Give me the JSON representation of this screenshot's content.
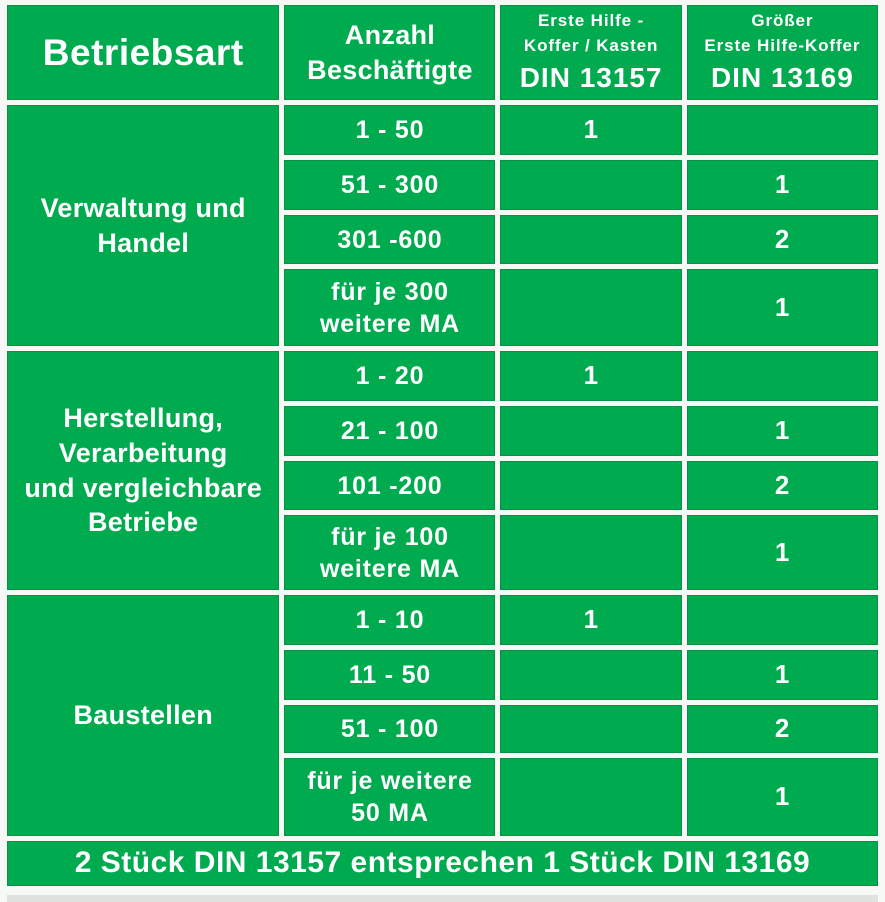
{
  "colors": {
    "green": "#00ab50",
    "cell_border": "#0a9146",
    "page_bg": "#ffffff",
    "text": "#ffffff",
    "bottom_strip": "#dfe3dd"
  },
  "header": {
    "betriebsart": "Betriebsart",
    "anzahl_lines": [
      "Anzahl",
      "Beschäftigte"
    ],
    "din13157_lines": [
      "Erste Hilfe -",
      "Koffer / Kasten"
    ],
    "din13157_code": "DIN 13157",
    "din13169_lines": [
      "Größer",
      "Erste Hilfe-Koffer"
    ],
    "din13169_code": "DIN 13169"
  },
  "groups": [
    {
      "name_lines": [
        "Verwaltung und",
        "Handel",
        "",
        ""
      ],
      "rows": [
        {
          "range_lines": [
            "1 - 50",
            ""
          ],
          "din13157": "1",
          "din13169": ""
        },
        {
          "range_lines": [
            "51 - 300",
            ""
          ],
          "din13157": "",
          "din13169": "1"
        },
        {
          "range_lines": [
            "301 -600",
            ""
          ],
          "din13157": "",
          "din13169": "2"
        },
        {
          "range_lines": [
            "für je 300",
            "weitere MA"
          ],
          "din13157": "",
          "din13169": "1"
        }
      ]
    },
    {
      "name_lines": [
        "Herstellung,",
        "Verarbeitung",
        "und vergleichbare",
        "Betriebe"
      ],
      "rows": [
        {
          "range_lines": [
            "1 - 20",
            ""
          ],
          "din13157": "1",
          "din13169": ""
        },
        {
          "range_lines": [
            "21 - 100",
            ""
          ],
          "din13157": "",
          "din13169": "1"
        },
        {
          "range_lines": [
            "101 -200",
            ""
          ],
          "din13157": "",
          "din13169": "2"
        },
        {
          "range_lines": [
            "für je 100",
            "weitere MA"
          ],
          "din13157": "",
          "din13169": "1"
        }
      ]
    },
    {
      "name_lines": [
        "Baustellen",
        "",
        "",
        ""
      ],
      "rows": [
        {
          "range_lines": [
            "1 - 10",
            ""
          ],
          "din13157": "1",
          "din13169": ""
        },
        {
          "range_lines": [
            "11 - 50",
            ""
          ],
          "din13157": "",
          "din13169": "1"
        },
        {
          "range_lines": [
            "51 - 100",
            ""
          ],
          "din13157": "",
          "din13169": "2"
        },
        {
          "range_lines": [
            "für je weitere",
            "50 MA"
          ],
          "din13157": "",
          "din13169": "1"
        }
      ]
    }
  ],
  "footer": "2 Stück DIN 13157 entsprechen 1 Stück DIN 13169",
  "chart_data": {
    "type": "table",
    "title": "Erste-Hilfe-Koffer Anforderungen nach Betriebsart",
    "columns": [
      "Betriebsart",
      "Anzahl Beschäftigte",
      "Erste Hilfe - Koffer / Kasten DIN 13157",
      "Größer Erste Hilfe-Koffer DIN 13169"
    ],
    "rows": [
      [
        "Verwaltung und Handel",
        "1 - 50",
        "1",
        ""
      ],
      [
        "Verwaltung und Handel",
        "51 - 300",
        "",
        "1"
      ],
      [
        "Verwaltung und Handel",
        "301 -600",
        "",
        "2"
      ],
      [
        "Verwaltung und Handel",
        "für je 300 weitere MA",
        "",
        "1"
      ],
      [
        "Herstellung, Verarbeitung und vergleichbare Betriebe",
        "1 - 20",
        "1",
        ""
      ],
      [
        "Herstellung, Verarbeitung und vergleichbare Betriebe",
        "21 - 100",
        "",
        "1"
      ],
      [
        "Herstellung, Verarbeitung und vergleichbare Betriebe",
        "101 -200",
        "",
        "2"
      ],
      [
        "Herstellung, Verarbeitung und vergleichbare Betriebe",
        "für je 100 weitere MA",
        "",
        "1"
      ],
      [
        "Baustellen",
        "1 - 10",
        "1",
        ""
      ],
      [
        "Baustellen",
        "11 - 50",
        "",
        "1"
      ],
      [
        "Baustellen",
        "51 - 100",
        "",
        "2"
      ],
      [
        "Baustellen",
        "für je weitere 50 MA",
        "",
        "1"
      ]
    ],
    "footer": "2 Stück DIN 13157 entsprechen 1 Stück DIN 13169",
    "layout": "grouped rows; first column cells span 4 rows each; footer spans all columns"
  }
}
